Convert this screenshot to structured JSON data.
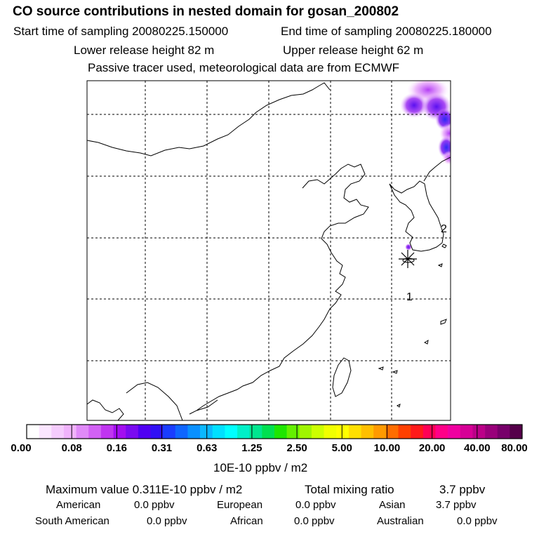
{
  "header": {
    "title": "CO  source contributions in nested domain for gosan_200802",
    "start_time": "Start time of sampling 20080225.150000",
    "end_time": "End time of sampling 20080225.180000",
    "lower_height": "Lower release height   82 m",
    "upper_height": "Upper release height   62 m",
    "tracer_info": "Passive tracer used, meteorological data are from ECMWF"
  },
  "map": {
    "markers": [
      {
        "label": "2"
      },
      {
        "label": "1"
      }
    ]
  },
  "colorbar": {
    "colors": [
      "#ffffff",
      "#fbe6ff",
      "#f5ccfd",
      "#f0b3fb",
      "#e08af8",
      "#d261f4",
      "#c035f0",
      "#a30ef0",
      "#7a0af0",
      "#5000f2",
      "#3010f5",
      "#1a3dff",
      "#0f66ff",
      "#0a90ff",
      "#0ab8ff",
      "#00e0ff",
      "#00ffff",
      "#00f0c8",
      "#00e68f",
      "#00e050",
      "#1ee600",
      "#64f000",
      "#a0f500",
      "#ccff00",
      "#f0ff00",
      "#ffff00",
      "#ffe000",
      "#ffbf00",
      "#ff9a00",
      "#ff6d00",
      "#ff4000",
      "#ff1a1a",
      "#ff0055",
      "#ff0088",
      "#f000a0",
      "#d60096",
      "#bb0088",
      "#99007a",
      "#77006a",
      "#55004a"
    ],
    "tick_labels": [
      "0.00",
      "0.08",
      "0.16",
      "0.31",
      "0.63",
      "1.25",
      "2.50",
      "5.00",
      "10.00",
      "20.00",
      "40.00",
      "80.00"
    ],
    "unit_label": "10E-10 ppbv / m2"
  },
  "chart_data": {
    "type": "heatmap",
    "title": "CO  source contributions in nested domain for gosan_200802",
    "color_scale_levels": [
      0.0,
      0.08,
      0.16,
      0.31,
      0.63,
      1.25,
      2.5,
      5.0,
      10.0,
      20.0,
      40.0,
      80.0
    ],
    "color_unit": "10E-10 ppbv / m2",
    "max_value": "0.311E-10 ppbv / m2",
    "total_mixing_ratio": "3.7 ppbv",
    "receptor": "gosan",
    "source_regions": [
      "American",
      "European",
      "Asian",
      "South American",
      "African",
      "Australian"
    ],
    "contributions_ppbv": [
      0.0,
      0.0,
      3.7,
      0.0,
      0.0,
      0.0
    ]
  },
  "summary": {
    "max_label": "Maximum value  0.311E-10 ppbv / m2",
    "total_label": "Total mixing ratio",
    "total_value": "3.7 ppbv",
    "regions": [
      {
        "name": "American",
        "value": "0.0 ppbv"
      },
      {
        "name": "European",
        "value": "0.0 ppbv"
      },
      {
        "name": "Asian",
        "value": "3.7 ppbv"
      },
      {
        "name": "South American",
        "value": "0.0 ppbv"
      },
      {
        "name": "African",
        "value": "0.0 ppbv"
      },
      {
        "name": "Australian",
        "value": "0.0 ppbv"
      }
    ]
  }
}
